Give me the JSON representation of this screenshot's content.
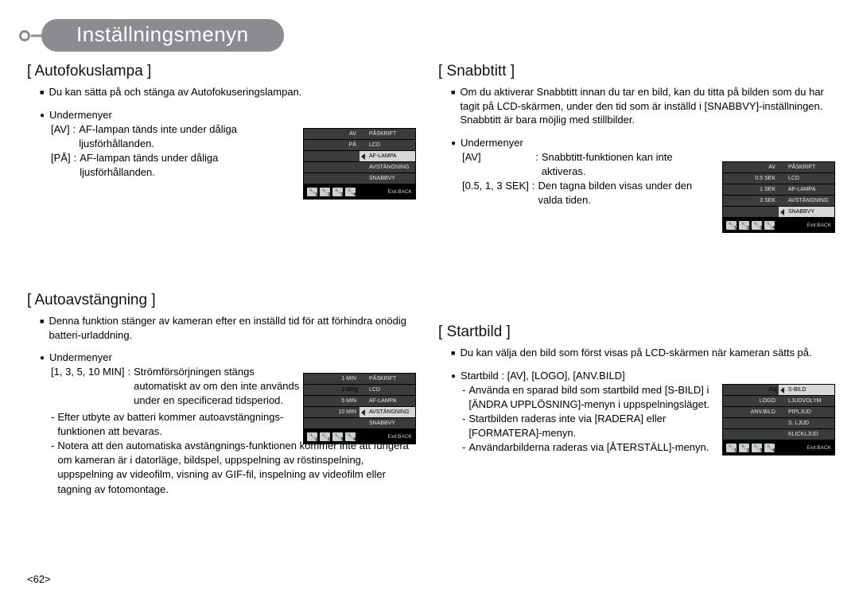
{
  "page": {
    "title": "Inställningsmenyn",
    "page_number": "<62>"
  },
  "sec1": {
    "title": "[ Autofokuslampa ]",
    "intro": "Du kan sätta på och stänga av Autofokuseringslampan.",
    "sub_heading": "Undermenyer",
    "defs": [
      {
        "label": "[AV]",
        "sep": ":",
        "val": "AF-lampan tänds inte under dåliga ljusförhållanden."
      },
      {
        "label": "[PÅ]",
        "sep": ":",
        "val": "AF-lampan tänds under dåliga ljusförhållanden."
      }
    ],
    "lcd": {
      "left": [
        "AV",
        "PÅ",
        "",
        "",
        ""
      ],
      "right": [
        "PÅSKRIFT",
        "LCD",
        "AF-LAMPA",
        "AVSTÄNGNING",
        "SNABBVY"
      ],
      "sel_left_idx": -1,
      "sel_right_idx": 2,
      "exit": "Exit:BACK",
      "foot_icons": [
        "1",
        "2",
        "3",
        "4"
      ]
    }
  },
  "sec2": {
    "title": "[ Autoavstängning ]",
    "intro": "Denna funktion stänger av kameran efter en inställd tid för att förhindra onödig batteri-urladdning.",
    "sub_heading": "Undermenyer",
    "defs": [
      {
        "label": "[1, 3, 5, 10 MIN]",
        "sep": ":",
        "val": "Strömförsörjningen stängs automatiskt av om den inte används under en specificerad tidsperiod."
      }
    ],
    "notes": [
      "Efter utbyte av batteri kommer autoavstängnings-funktionen att bevaras.",
      "Notera att den automatiska avstängnings-funktionen kommer inte att fungera om kameran är i datorläge, bildspel, uppspelning av röstinspelning, uppspelning av videofilm, visning av GIF-fil, inspelning av videofilm eller tagning av fotomontage."
    ],
    "lcd": {
      "left": [
        "1 MIN",
        "3 MIN",
        "5 MIN",
        "10 MIN",
        ""
      ],
      "right": [
        "PÅSKRIFT",
        "LCD",
        "AF-LAMPA",
        "AVSTÄNGNING",
        "SNABBVY"
      ],
      "sel_left_idx": 1,
      "sel_right_idx": 3,
      "exit": "Exit:BACK",
      "foot_icons": [
        "1",
        "2",
        "3",
        "4"
      ]
    }
  },
  "sec3": {
    "title": "[ Snabbtitt ]",
    "intro": "Om du aktiverar Snabbtitt innan du tar en bild, kan du titta på bilden som du har tagit på LCD-skärmen, under den tid som är inställd i [SNABBVY]-inställningen. Snabbtitt är bara möjlig med stillbilder.",
    "sub_heading": "Undermenyer",
    "defs": [
      {
        "label": "[AV]",
        "sep": ":",
        "val": "Snabbtitt-funktionen kan inte aktiveras."
      },
      {
        "label": "[0.5, 1, 3 SEK]",
        "sep": ":",
        "val": "Den tagna bilden visas under den valda tiden."
      }
    ],
    "lcd": {
      "left": [
        "AV",
        "0.5 SEK",
        "1 SEK",
        "3 SEK",
        ""
      ],
      "right": [
        "PÅSKRIFT",
        "LCD",
        "AF-LAMPA",
        "AVSTÄNGNING",
        "SNABBVY"
      ],
      "sel_left_idx": -1,
      "sel_right_idx": 4,
      "exit": "Exit:BACK",
      "foot_icons": [
        "1",
        "2",
        "3",
        "4"
      ]
    }
  },
  "sec4": {
    "title": "[ Startbild ]",
    "intro": "Du kan välja den bild som först visas på LCD-skärmen när kameran sätts på.",
    "sub_heading": "Startbild : [AV], [LOGO], [ANV.BILD]",
    "notes": [
      "Använda en sparad bild som startbild med [S-BILD] i [ÄNDRA UPPLÖSNING]-menyn i uppspelningsläget.",
      "Startbilden raderas inte via [RADERA] eller [FORMATERA]-menyn.",
      "Användarbilderna raderas via [ÅTERSTÄLL]-menyn."
    ],
    "lcd": {
      "left": [
        "AV",
        "LOGO",
        "ANV.BILD",
        "",
        ""
      ],
      "right": [
        "S-BILD",
        "LJUDVOLYM",
        "PIPLJUD",
        "S. LJUD",
        "KLICKLJUD"
      ],
      "sel_left_idx": 0,
      "sel_right_idx": 0,
      "exit": "Exit:BACK",
      "foot_icons": [
        "1",
        "2",
        "3",
        "4"
      ]
    }
  }
}
